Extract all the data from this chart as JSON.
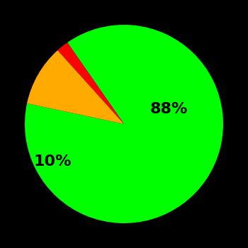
{
  "slices": [
    88,
    2,
    10
  ],
  "colors": [
    "#00ff00",
    "#ff0000",
    "#ffaa00"
  ],
  "labels": [
    "88%",
    "",
    "10%"
  ],
  "background_color": "#000000",
  "label_fontsize": 16,
  "label_fontweight": "bold",
  "startangle": 168,
  "figsize": [
    3.5,
    3.5
  ],
  "dpi": 100
}
